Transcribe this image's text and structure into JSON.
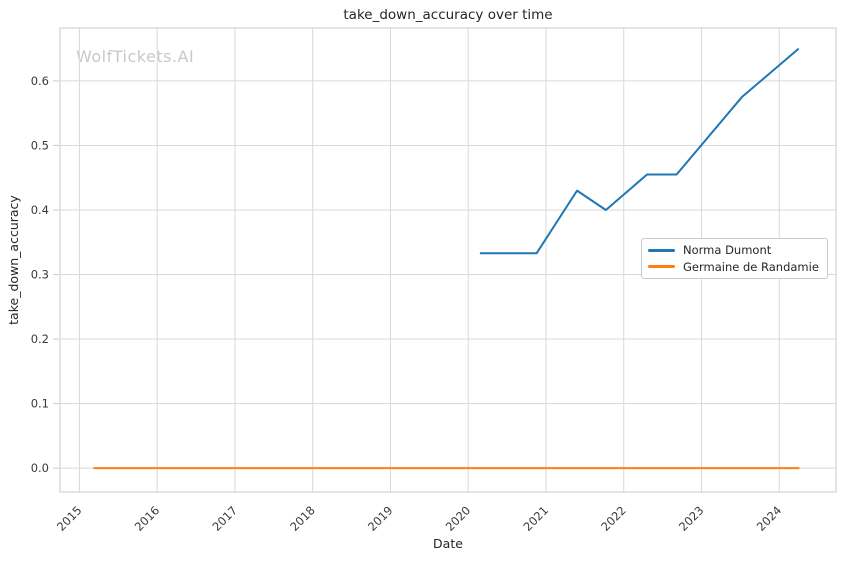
{
  "watermark": "WolfTickets.AI",
  "chart_data": {
    "type": "line",
    "title": "take_down_accuracy over time",
    "xlabel": "Date",
    "ylabel": "take_down_accuracy",
    "x_ticks": [
      2015,
      2016,
      2017,
      2018,
      2019,
      2020,
      2021,
      2022,
      2023,
      2024
    ],
    "y_ticks": [
      0.0,
      0.1,
      0.2,
      0.3,
      0.4,
      0.5,
      0.6
    ],
    "xlim": [
      2014.75,
      2024.73
    ],
    "ylim": [
      -0.037,
      0.682
    ],
    "grid": true,
    "legend_position": "center-right",
    "series": [
      {
        "name": "Norma Dumont",
        "color": "#1f77b4",
        "x": [
          2020.15,
          2020.88,
          2021.4,
          2021.77,
          2022.3,
          2022.68,
          2023.52,
          2024.25
        ],
        "y": [
          0.333,
          0.333,
          0.43,
          0.4,
          0.455,
          0.455,
          0.575,
          0.65
        ]
      },
      {
        "name": "Germaine de Randamie",
        "color": "#ff7f0e",
        "x": [
          2015.18,
          2024.26
        ],
        "y": [
          0.0,
          0.0
        ]
      }
    ]
  },
  "colors": {
    "grid": "#d9d9d9",
    "spine": "#d2d2d2",
    "tick_mark": "#cccccc",
    "text": "#262626",
    "tick_text": "#3a3a3a",
    "watermark": "#c9c9c9",
    "background": "#ffffff"
  }
}
